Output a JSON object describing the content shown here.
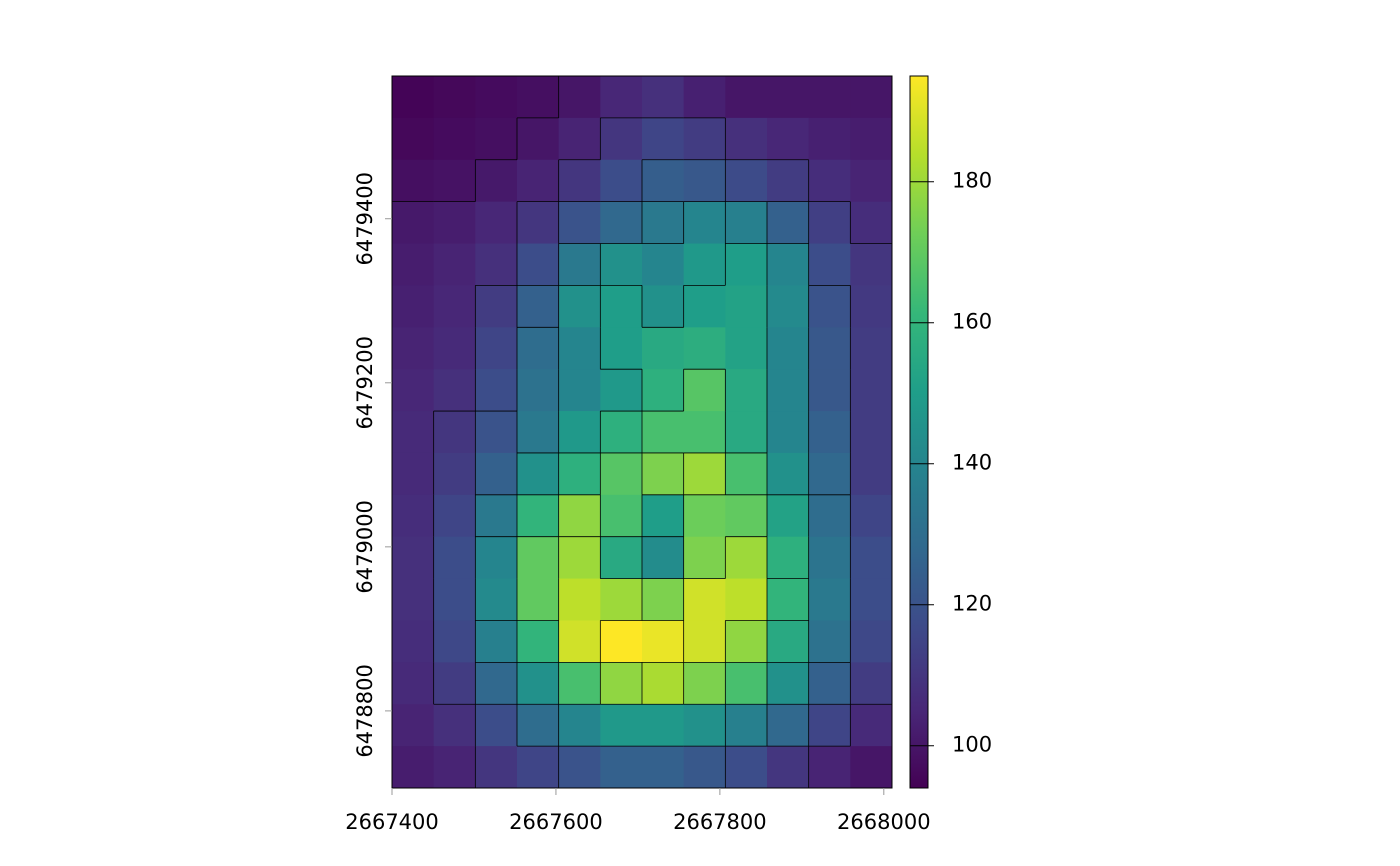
{
  "chart_data": {
    "type": "raster",
    "colormap": "viridis",
    "contour_interval": 10,
    "xlim": [
      2667400,
      2668010
    ],
    "ylim": [
      6478706,
      6479574
    ],
    "xticks": [
      2667400,
      2667600,
      2667800,
      2668000
    ],
    "yticks": [
      6478800,
      6479000,
      6479200,
      6479400
    ],
    "clim": [
      94,
      195
    ],
    "cticks": [
      100,
      120,
      140,
      160,
      180
    ],
    "values": [
      [
        95,
        96,
        97,
        98,
        100,
        105,
        108,
        103,
        100,
        100,
        100,
        100
      ],
      [
        96,
        97,
        98,
        100,
        104,
        110,
        115,
        112,
        108,
        105,
        103,
        102
      ],
      [
        98,
        99,
        101,
        104,
        110,
        118,
        124,
        122,
        117,
        112,
        107,
        104
      ],
      [
        101,
        102,
        105,
        110,
        120,
        128,
        135,
        140,
        138,
        125,
        113,
        107
      ],
      [
        102,
        104,
        108,
        118,
        135,
        145,
        140,
        148,
        150,
        140,
        118,
        110
      ],
      [
        103,
        105,
        112,
        125,
        145,
        150,
        145,
        150,
        152,
        142,
        120,
        111
      ],
      [
        104,
        106,
        115,
        130,
        140,
        150,
        155,
        157,
        152,
        140,
        122,
        112
      ],
      [
        105,
        108,
        118,
        132,
        140,
        148,
        158,
        168,
        155,
        140,
        122,
        112
      ],
      [
        106,
        110,
        120,
        135,
        148,
        158,
        165,
        165,
        155,
        140,
        125,
        112
      ],
      [
        106,
        112,
        125,
        145,
        158,
        168,
        175,
        180,
        165,
        145,
        128,
        112
      ],
      [
        107,
        115,
        135,
        160,
        178,
        165,
        150,
        172,
        170,
        152,
        130,
        115
      ],
      [
        108,
        118,
        140,
        170,
        180,
        155,
        143,
        175,
        180,
        158,
        133,
        118
      ],
      [
        108,
        118,
        142,
        170,
        185,
        180,
        175,
        188,
        185,
        160,
        135,
        118
      ],
      [
        107,
        116,
        138,
        160,
        188,
        195,
        192,
        188,
        178,
        155,
        132,
        116
      ],
      [
        106,
        112,
        128,
        145,
        165,
        178,
        182,
        175,
        165,
        145,
        125,
        112
      ],
      [
        104,
        108,
        118,
        130,
        140,
        148,
        148,
        145,
        138,
        128,
        115,
        106
      ],
      [
        102,
        104,
        110,
        115,
        120,
        125,
        125,
        122,
        118,
        110,
        104,
        100
      ]
    ]
  }
}
